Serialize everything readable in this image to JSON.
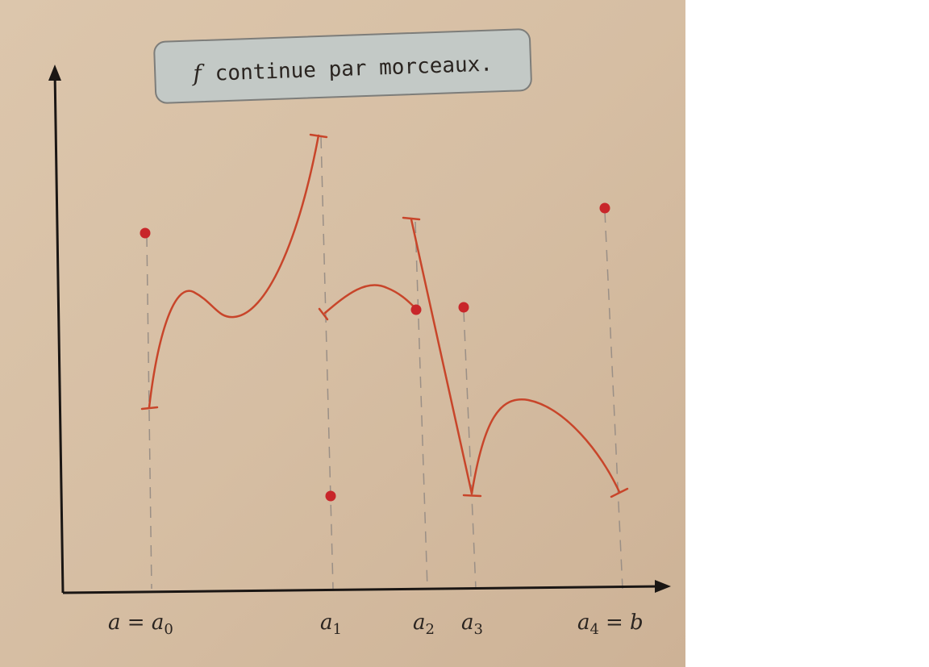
{
  "title": {
    "variable": "f",
    "text": "continue par morceaux."
  },
  "x_labels": [
    {
      "before": "a = a",
      "sub": "0"
    },
    {
      "before": "a",
      "sub": "1"
    },
    {
      "before": "a",
      "sub": "2"
    },
    {
      "before": "a",
      "sub": "3"
    },
    {
      "before": "a",
      "sub": "4",
      "after": "= b"
    }
  ]
}
